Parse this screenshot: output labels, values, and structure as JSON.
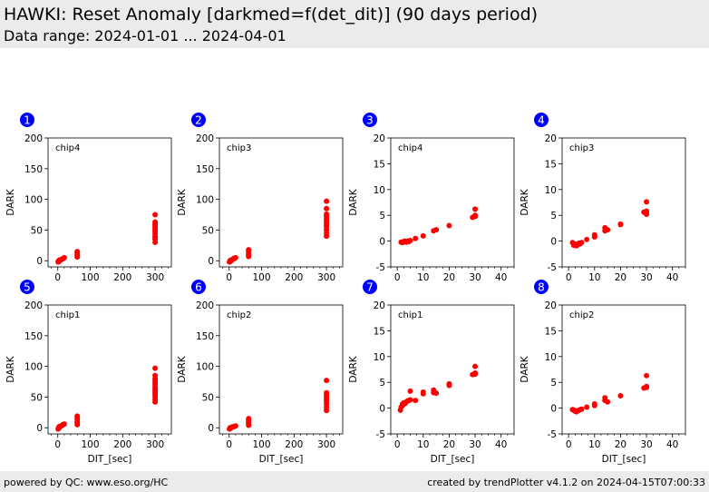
{
  "header": {
    "title": "HAWKI: Reset Anomaly [darkmed=f(det_dit)] (90 days period)",
    "subtitle": "Data range: 2024-01-01 ... 2024-04-01"
  },
  "footer": {
    "left": "powered by QC: www.eso.org/HC",
    "right": "created by trendPlotter v4.1.2 on 2024-04-15T07:00:33"
  },
  "colors": {
    "marker": "#ff0000",
    "badge": "#0000ff",
    "header_bg": "#ebebeb"
  },
  "chart_data": [
    {
      "type": "scatter",
      "badge": "1",
      "label": "chip4",
      "xlabel": "",
      "ylabel": "DARK",
      "xlim": [
        -30,
        350
      ],
      "ylim": [
        -10,
        200
      ],
      "xticks": [
        0,
        100,
        200,
        300
      ],
      "yticks": [
        0,
        50,
        100,
        150,
        200
      ],
      "x": [
        1,
        2,
        3,
        3,
        4,
        5,
        6,
        8,
        10,
        14,
        15,
        20,
        60,
        60,
        60,
        60,
        60,
        300,
        300,
        300,
        300,
        300,
        300,
        300,
        300,
        300,
        300,
        300,
        300,
        300
      ],
      "y": [
        -2,
        -1,
        -1,
        0,
        -1,
        1,
        0,
        1,
        2,
        3,
        3,
        5,
        6,
        8,
        10,
        13,
        15,
        30,
        35,
        38,
        40,
        44,
        47,
        50,
        53,
        55,
        58,
        60,
        63,
        75
      ]
    },
    {
      "type": "scatter",
      "badge": "2",
      "label": "chip3",
      "xlabel": "",
      "ylabel": "DARK",
      "xlim": [
        -30,
        350
      ],
      "ylim": [
        -10,
        200
      ],
      "xticks": [
        0,
        100,
        200,
        300
      ],
      "yticks": [
        0,
        50,
        100,
        150,
        200
      ],
      "x": [
        1,
        2,
        3,
        3,
        4,
        5,
        6,
        8,
        10,
        14,
        15,
        20,
        60,
        60,
        60,
        60,
        60,
        300,
        300,
        300,
        300,
        300,
        300,
        300,
        300,
        300,
        300,
        300,
        300
      ],
      "y": [
        -2,
        -1,
        -1,
        0,
        -1,
        1,
        0,
        1,
        2,
        3,
        4,
        5,
        7,
        9,
        12,
        15,
        18,
        40,
        45,
        50,
        55,
        58,
        62,
        65,
        68,
        72,
        76,
        85,
        97
      ]
    },
    {
      "type": "scatter",
      "badge": "3",
      "label": "chip4",
      "xlabel": "",
      "ylabel": "DARK",
      "xlim": [
        -2.5,
        45
      ],
      "ylim": [
        -5,
        20
      ],
      "xticks": [
        0,
        10,
        20,
        30,
        40
      ],
      "yticks": [
        -5,
        0,
        5,
        10,
        15,
        20
      ],
      "x": [
        1.5,
        2,
        2.5,
        3,
        3.5,
        4,
        4.5,
        5,
        7,
        10,
        14,
        15,
        20,
        29,
        30,
        30,
        30
      ],
      "y": [
        -0.2,
        -0.3,
        -0.1,
        0,
        -0.2,
        0,
        -0.1,
        0.1,
        0.5,
        1,
        2,
        2.2,
        3,
        4.6,
        4.8,
        5,
        6.2
      ]
    },
    {
      "type": "scatter",
      "badge": "4",
      "label": "chip3",
      "xlabel": "",
      "ylabel": "DARK",
      "xlim": [
        -2.5,
        45
      ],
      "ylim": [
        -5,
        20
      ],
      "xticks": [
        0,
        10,
        20,
        30,
        40
      ],
      "yticks": [
        -5,
        0,
        5,
        10,
        15,
        20
      ],
      "x": [
        1.5,
        2,
        2,
        2.5,
        3,
        3.5,
        4,
        4.5,
        5,
        7,
        10,
        10,
        14,
        14,
        15,
        20,
        20,
        29,
        30,
        30,
        30,
        30
      ],
      "y": [
        -0.3,
        -0.5,
        -0.8,
        -0.6,
        -0.9,
        -0.7,
        -0.4,
        -0.5,
        -0.3,
        0.3,
        0.8,
        1.2,
        2,
        2.6,
        2.2,
        3.2,
        3.3,
        5.6,
        5.4,
        5.8,
        5.2,
        7.6
      ]
    },
    {
      "type": "scatter",
      "badge": "5",
      "label": "chip1",
      "xlabel": "DIT_[sec]",
      "ylabel": "DARK",
      "xlim": [
        -30,
        350
      ],
      "ylim": [
        -10,
        200
      ],
      "xticks": [
        0,
        100,
        200,
        300
      ],
      "yticks": [
        0,
        50,
        100,
        150,
        200
      ],
      "x": [
        1,
        2,
        3,
        3,
        4,
        5,
        6,
        8,
        10,
        14,
        15,
        20,
        60,
        60,
        60,
        60,
        60,
        60,
        300,
        300,
        300,
        300,
        300,
        300,
        300,
        300,
        300,
        300,
        300,
        300,
        300,
        300
      ],
      "y": [
        -2,
        -1,
        0,
        1,
        0,
        2,
        1,
        2,
        3,
        4,
        5,
        6,
        5,
        8,
        10,
        13,
        16,
        19,
        42,
        46,
        50,
        54,
        57,
        60,
        63,
        66,
        70,
        73,
        76,
        80,
        85,
        97
      ]
    },
    {
      "type": "scatter",
      "badge": "6",
      "label": "chip2",
      "xlabel": "DIT_[sec]",
      "ylabel": "DARK",
      "xlim": [
        -30,
        350
      ],
      "ylim": [
        -10,
        200
      ],
      "xticks": [
        0,
        100,
        200,
        300
      ],
      "yticks": [
        0,
        50,
        100,
        150,
        200
      ],
      "x": [
        1,
        2,
        3,
        3,
        4,
        5,
        6,
        8,
        10,
        14,
        15,
        20,
        60,
        60,
        60,
        60,
        60,
        300,
        300,
        300,
        300,
        300,
        300,
        300,
        300,
        300
      ],
      "y": [
        -2,
        -1,
        -1,
        0,
        -1,
        0,
        0,
        1,
        1,
        2,
        2,
        3,
        4,
        6,
        9,
        12,
        15,
        28,
        33,
        38,
        42,
        46,
        50,
        53,
        57,
        77
      ]
    },
    {
      "type": "scatter",
      "badge": "7",
      "label": "chip1",
      "xlabel": "DIT_[sec]",
      "ylabel": "DARK",
      "xlim": [
        -2.5,
        45
      ],
      "ylim": [
        -5,
        20
      ],
      "xticks": [
        0,
        10,
        20,
        30,
        40
      ],
      "yticks": [
        -5,
        0,
        5,
        10,
        15,
        20
      ],
      "x": [
        1.2,
        1.5,
        2,
        2,
        2.5,
        3,
        3.5,
        4,
        4.5,
        5,
        5,
        7,
        10,
        10,
        14,
        14,
        15,
        20,
        20,
        29,
        30,
        30,
        30
      ],
      "y": [
        -0.4,
        0.2,
        0.5,
        0.8,
        1,
        0.9,
        1.2,
        1.4,
        1.5,
        1.6,
        3.3,
        1.5,
        2.8,
        3.1,
        3,
        3.5,
        2.9,
        4.4,
        4.7,
        6.5,
        6.6,
        6.8,
        8.1
      ]
    },
    {
      "type": "scatter",
      "badge": "8",
      "label": "chip2",
      "xlabel": "DIT_[sec]",
      "ylabel": "DARK",
      "xlim": [
        -2.5,
        45
      ],
      "ylim": [
        -5,
        20
      ],
      "xticks": [
        0,
        10,
        20,
        30,
        40
      ],
      "yticks": [
        -5,
        0,
        5,
        10,
        15,
        20
      ],
      "x": [
        1.5,
        2,
        2.5,
        3,
        3.5,
        4,
        4.5,
        5,
        7,
        10,
        10,
        14,
        14,
        15,
        20,
        29,
        30,
        30,
        30
      ],
      "y": [
        -0.3,
        -0.4,
        -0.6,
        -0.7,
        -0.5,
        -0.4,
        -0.3,
        -0.2,
        0.2,
        0.5,
        0.8,
        1.5,
        2,
        1.2,
        2.4,
        3.9,
        4,
        4.2,
        6.3
      ]
    }
  ]
}
